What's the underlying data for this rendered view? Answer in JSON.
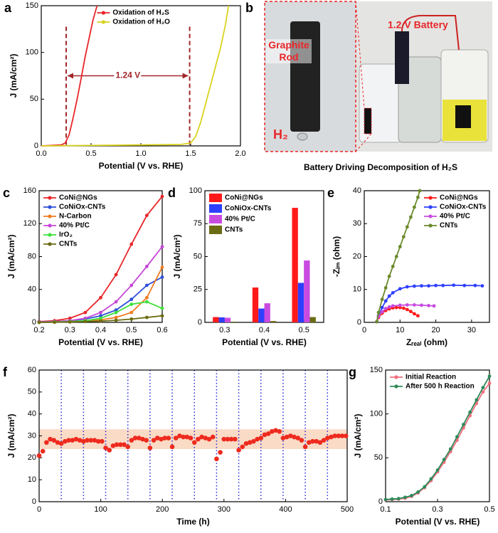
{
  "chart_data": [
    {
      "type": "line",
      "label": "a",
      "xlabel": "Potential (V vs. RHE)",
      "ylabel": "J (mA/cm²)",
      "xlim": [
        0,
        2.0
      ],
      "xticks": [
        {
          "value": 0,
          "label": "0.0"
        },
        {
          "value": 0.5,
          "label": "0.5"
        },
        {
          "value": 1,
          "label": "1.0"
        },
        {
          "value": 1.5,
          "label": "1.5"
        },
        {
          "value": 2,
          "label": "2.0"
        }
      ],
      "ylim": [
        0,
        150
      ],
      "yticks": [
        0,
        50,
        100,
        150
      ],
      "legend": "upper center",
      "annotation": "1.24 V",
      "vlines": [
        0.25,
        1.49
      ],
      "series": [
        {
          "name": "Oxidation of H₂S",
          "color": "#e8262a",
          "x": [
            0,
            0.1,
            0.2,
            0.24,
            0.28,
            0.32,
            0.36,
            0.4,
            0.44,
            0.48,
            0.52,
            0.56
          ],
          "values": [
            0,
            0.5,
            1,
            3,
            12,
            30,
            50,
            72,
            95,
            115,
            135,
            150
          ]
        },
        {
          "name": "Oxidation of H₂O",
          "color": "#d9d21c",
          "x": [
            0,
            0.5,
            1.0,
            1.4,
            1.5,
            1.55,
            1.6,
            1.65,
            1.7,
            1.75,
            1.8,
            1.85,
            1.88
          ],
          "values": [
            0,
            0.5,
            1,
            1.5,
            3,
            10,
            25,
            45,
            65,
            85,
            105,
            130,
            150
          ]
        }
      ]
    },
    {
      "type": "image",
      "label": "b",
      "caption": "Battery Driving Decomposition of H₂S",
      "annotations": [
        "Graphite Rod",
        "H₂",
        "1.2 V Battery"
      ]
    },
    {
      "type": "line",
      "label": "c",
      "xlabel": "Potential (V vs. RHE)",
      "ylabel": "J (mA/cm²)",
      "markers": true,
      "xlim": [
        0.2,
        0.6
      ],
      "xticks": [
        0.2,
        0.3,
        0.4,
        0.5,
        0.6
      ],
      "ylim": [
        0,
        160
      ],
      "yticks": [
        0,
        40,
        80,
        120,
        160
      ],
      "legend": "upper left",
      "x": [
        0.2,
        0.25,
        0.3,
        0.35,
        0.4,
        0.45,
        0.5,
        0.55,
        0.6
      ],
      "series": [
        {
          "name": "CoNi@NGs",
          "color": "#e8262a",
          "values": [
            1,
            2,
            5,
            12,
            30,
            58,
            95,
            130,
            153
          ]
        },
        {
          "name": "CoNiOx-CNTs",
          "color": "#2f4fd8",
          "values": [
            0.5,
            1,
            2,
            4,
            8,
            15,
            28,
            45,
            55
          ]
        },
        {
          "name": "N-Carbon",
          "color": "#f07c22",
          "values": [
            0,
            0.5,
            1,
            1.5,
            3,
            6,
            12,
            30,
            67
          ]
        },
        {
          "name": "40% Pt/C",
          "color": "#c447d6",
          "values": [
            0.5,
            1,
            2,
            5,
            12,
            25,
            45,
            68,
            92
          ]
        },
        {
          "name": "IrO₂",
          "color": "#3ee03a",
          "values": [
            0,
            0.5,
            1,
            2,
            5,
            12,
            22,
            25,
            17
          ]
        },
        {
          "name": "CNTs",
          "color": "#6b6b12",
          "values": [
            0,
            0.2,
            0.5,
            1,
            1.5,
            2.5,
            4,
            6,
            8
          ]
        }
      ]
    },
    {
      "type": "bar",
      "label": "d",
      "xlabel": "Potential (V vs. RHE)",
      "ylabel": "J (mA/cm²)",
      "categories": [
        "0.3",
        "0.4",
        "0.5"
      ],
      "ylim": [
        0,
        100
      ],
      "yticks": [
        0,
        25,
        50,
        75,
        100
      ],
      "legend": "upper left",
      "series": [
        {
          "name": "CoNi@NGs",
          "color": "#ff1a1a",
          "values": [
            4,
            26.5,
            87
          ]
        },
        {
          "name": "CoNiOx-CNTs",
          "color": "#2f3fff",
          "values": [
            3.8,
            10.5,
            30
          ]
        },
        {
          "name": "40% Pt/C",
          "color": "#c84be0",
          "values": [
            3.5,
            14.5,
            47
          ]
        },
        {
          "name": "CNTs",
          "color": "#6b6b12",
          "values": [
            0.5,
            1,
            4
          ]
        }
      ]
    },
    {
      "type": "line",
      "label": "e",
      "xlabel": "Zᵣₑₐₗ (ohm)",
      "ylabel": "-Zᵢₘ (ohm)",
      "markers": true,
      "xlim": [
        0,
        35
      ],
      "xticks": [
        0,
        10,
        20,
        30
      ],
      "ylim": [
        0,
        40
      ],
      "yticks": [
        0,
        10,
        20,
        30,
        40
      ],
      "legend": "upper right",
      "series": [
        {
          "name": "CoNi@NGs",
          "color": "#ff1a1a",
          "x": [
            3.5,
            4,
            5,
            6,
            7,
            8,
            9,
            10,
            11,
            12,
            13,
            14,
            15
          ],
          "values": [
            0.2,
            1.5,
            2.8,
            3.6,
            4.1,
            4.4,
            4.5,
            4.5,
            4.3,
            3.9,
            3.3,
            2.6,
            2
          ]
        },
        {
          "name": "CoNiOx-CNTs",
          "color": "#2f3fff",
          "x": [
            3.5,
            4,
            5,
            6,
            7,
            8,
            10,
            12,
            14,
            16,
            18,
            20,
            22,
            25,
            28,
            31,
            33
          ],
          "values": [
            0.2,
            2,
            4.5,
            6.5,
            8,
            9,
            10.2,
            10.8,
            11,
            11.1,
            11.1,
            11.2,
            11.2,
            11.3,
            11.2,
            11.2,
            11.1
          ]
        },
        {
          "name": "40% Pt/C",
          "color": "#c84be0",
          "x": [
            3.5,
            4,
            5,
            6,
            7,
            8,
            10,
            12,
            14,
            16,
            18,
            19.5
          ],
          "values": [
            0.2,
            1.8,
            3.2,
            4.2,
            4.7,
            5,
            5.2,
            5.3,
            5.3,
            5.2,
            5.1,
            5
          ]
        },
        {
          "name": "CNTs",
          "color": "#6b8a2a",
          "x": [
            3.5,
            4,
            5,
            6,
            7,
            8,
            9,
            10,
            11,
            12,
            13,
            14,
            15,
            15.5
          ],
          "values": [
            0.2,
            3,
            7,
            10.5,
            14,
            17,
            20,
            23,
            26,
            29,
            32,
            35,
            38,
            40
          ]
        }
      ]
    },
    {
      "type": "scatter",
      "label": "f",
      "xlabel": "Time (h)",
      "ylabel": "J (mA/cm²)",
      "xlim": [
        0,
        500
      ],
      "xticks": [
        0,
        100,
        200,
        300,
        400,
        500
      ],
      "ylim": [
        0,
        60
      ],
      "yticks": [
        0,
        10,
        20,
        30,
        40,
        50,
        60
      ],
      "band": [
        24,
        33
      ],
      "band_color": "#f9d2b6",
      "vline_color": "#2a2ae0",
      "vlines": [
        36,
        72,
        108,
        144,
        180,
        216,
        252,
        288,
        324,
        360,
        396,
        432,
        468
      ],
      "x": [
        0,
        6,
        12,
        18,
        24,
        30,
        36,
        42,
        48,
        54,
        60,
        66,
        72,
        78,
        84,
        90,
        96,
        102,
        108,
        114,
        120,
        126,
        132,
        138,
        144,
        150,
        156,
        162,
        168,
        174,
        180,
        186,
        192,
        198,
        204,
        210,
        216,
        222,
        228,
        234,
        240,
        246,
        252,
        258,
        264,
        270,
        276,
        282,
        288,
        294,
        300,
        306,
        312,
        318,
        324,
        330,
        336,
        342,
        348,
        354,
        360,
        366,
        372,
        378,
        384,
        390,
        396,
        402,
        408,
        414,
        420,
        426,
        432,
        438,
        444,
        450,
        456,
        462,
        468,
        474,
        480,
        486,
        492,
        498
      ],
      "series": [
        {
          "color": "#ee2a1e",
          "values": [
            21,
            23,
            27,
            28.5,
            28,
            27,
            26.5,
            27.5,
            28,
            28,
            28.5,
            28,
            27.5,
            28,
            28,
            28,
            27.5,
            27.5,
            24.5,
            23.5,
            25.5,
            26,
            26,
            26,
            25,
            28,
            29,
            29,
            28.5,
            28,
            24.5,
            28,
            29,
            28.5,
            29,
            29,
            25,
            29,
            30,
            29.5,
            29.5,
            29,
            27,
            28.5,
            29.5,
            29,
            28.5,
            29.5,
            19.5,
            22.5,
            28.5,
            28.5,
            28.5,
            28.5,
            23.5,
            25,
            26.5,
            27,
            27.5,
            28.5,
            29,
            30.5,
            31,
            32,
            32.5,
            32,
            29,
            29.5,
            30,
            29.5,
            29,
            28,
            25,
            27,
            27.5,
            27.5,
            27,
            28,
            29,
            29.5,
            30,
            30,
            30,
            30
          ]
        }
      ]
    },
    {
      "type": "line",
      "label": "g",
      "xlabel": "Potential (V vs. RHE)",
      "ylabel": "J (mA/cm²)",
      "markers": true,
      "xlim": [
        0.1,
        0.5
      ],
      "xticks": [
        0.1,
        0.3,
        0.5
      ],
      "ylim": [
        0,
        150
      ],
      "yticks": [
        0,
        50,
        100,
        150
      ],
      "legend": "upper left",
      "x": [
        0.1,
        0.125,
        0.15,
        0.175,
        0.2,
        0.225,
        0.25,
        0.275,
        0.3,
        0.325,
        0.35,
        0.375,
        0.4,
        0.425,
        0.45,
        0.475,
        0.5
      ],
      "series": [
        {
          "name": "Initial Reaction",
          "color": "#ef6f7f",
          "values": [
            2,
            2.5,
            3,
            4,
            6,
            10,
            16,
            24,
            34,
            45,
            57,
            70,
            84,
            98,
            112,
            125,
            135
          ]
        },
        {
          "name": "After 500 h Reaction",
          "color": "#2e8a5a",
          "values": [
            2.5,
            3,
            3.5,
            5,
            7,
            11,
            17,
            26,
            36,
            48,
            60,
            74,
            88,
            102,
            116,
            130,
            143
          ]
        }
      ]
    }
  ]
}
